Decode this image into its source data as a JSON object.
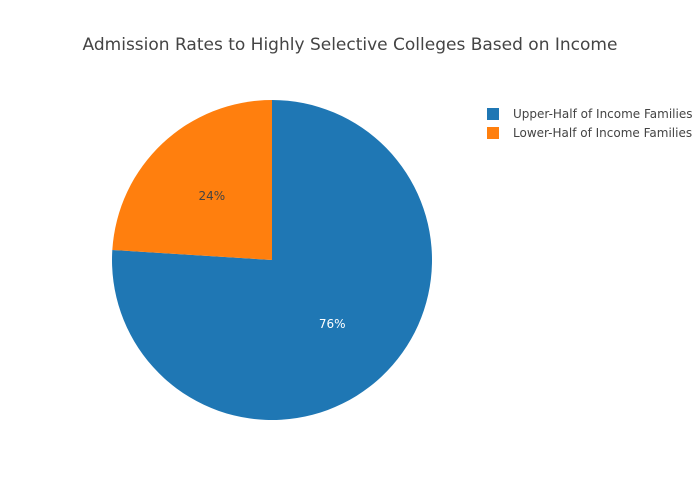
{
  "chart_data": {
    "type": "pie",
    "title": "Admission Rates to Highly Selective Colleges Based on Income",
    "labels": [
      "Upper-Half of Income Families",
      "Lower-Half of Income Families"
    ],
    "values": [
      76,
      24
    ],
    "text_labels": [
      "76%",
      "24%"
    ],
    "colors": [
      "#1f77b4",
      "#ff7f0e"
    ],
    "label_colors": [
      "#ffffff",
      "#444444"
    ],
    "direction": "clockwise",
    "legend_position": "top-right"
  }
}
